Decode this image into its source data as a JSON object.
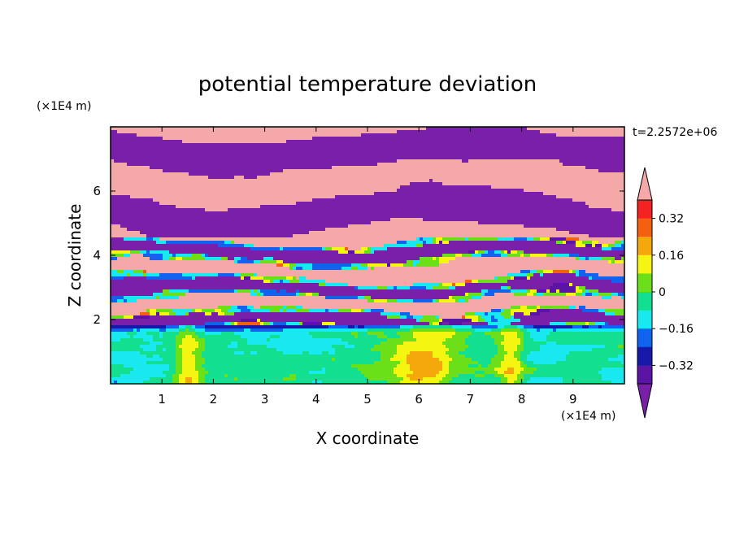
{
  "chart_data": {
    "type": "heatmap",
    "title": "potential temperature deviation",
    "xlabel": "X coordinate",
    "ylabel": "Z coordinate",
    "x_unit": "(×1E4 m)",
    "y_unit": "(×1E4 m)",
    "time_label": "t=2.2572e+06",
    "xlim": [
      0,
      10
    ],
    "ylim": [
      0,
      8
    ],
    "x_ticks": [
      "1",
      "2",
      "3",
      "4",
      "5",
      "6",
      "7",
      "8",
      "9"
    ],
    "y_ticks": [
      "2",
      "4",
      "6"
    ],
    "colorbar": {
      "labels": [
        "0.32",
        "0.16",
        "0",
        "−0.16",
        "−0.32"
      ],
      "label_values": [
        0.32,
        0.16,
        0,
        -0.16,
        -0.32
      ],
      "levels": [
        -0.4,
        -0.32,
        -0.24,
        -0.16,
        -0.08,
        0,
        0.08,
        0.16,
        0.24,
        0.32,
        0.4
      ],
      "colors": [
        "#7a1fa8",
        "#5b14a5",
        "#1518a8",
        "#1262f0",
        "#18e8f0",
        "#12e090",
        "#6be018",
        "#f5f512",
        "#f5a80c",
        "#f56010",
        "#f52222",
        "#f5a8a8"
      ],
      "extend": "both",
      "grid": false
    },
    "field_description": [
      {
        "z_range": [
          5.0,
          8.0
        ],
        "pattern": "alternating bands",
        "values": [
          0.45,
          -0.45
        ]
      },
      {
        "z_range": [
          2.0,
          5.0
        ],
        "pattern": "mixed layers",
        "values": [
          0.45,
          -0.45,
          -0.2,
          0.1,
          -0.1
        ]
      },
      {
        "z_range": [
          0.0,
          2.0
        ],
        "pattern": "convective plumes",
        "values": [
          0.0,
          0.1,
          0.2,
          -0.12
        ]
      }
    ]
  }
}
